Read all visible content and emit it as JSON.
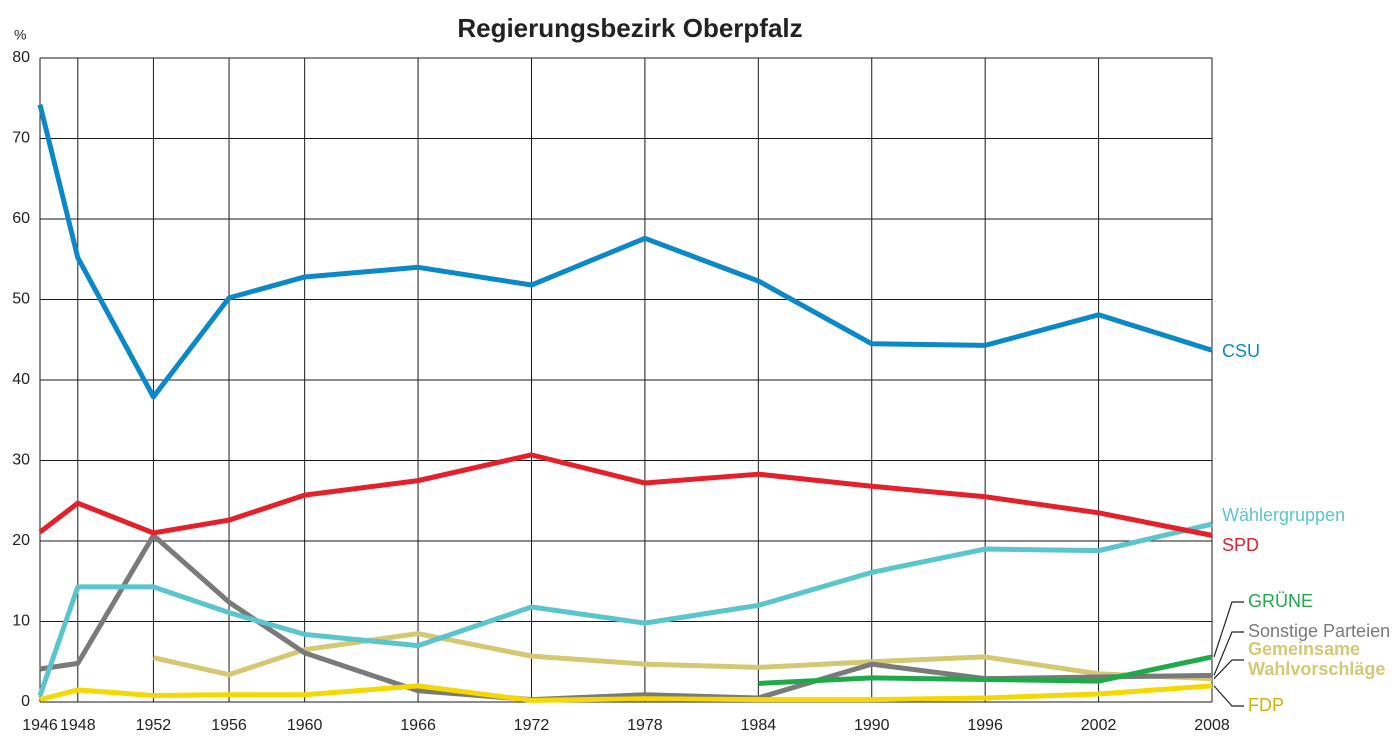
{
  "chart_data": {
    "type": "line",
    "title": "Regierungsbezirk Oberpfalz",
    "y_unit": "%",
    "x": [
      1946,
      1948,
      1952,
      1956,
      1960,
      1966,
      1972,
      1978,
      1984,
      1990,
      1996,
      2002,
      2008
    ],
    "xlim": [
      1946,
      2008
    ],
    "xticks": [
      1946,
      1948,
      1952,
      1956,
      1960,
      1966,
      1972,
      1978,
      1984,
      1990,
      1996,
      2002,
      2008
    ],
    "ylim": [
      0,
      80
    ],
    "yticks": [
      0,
      10,
      20,
      30,
      40,
      50,
      60,
      70,
      80
    ],
    "grid": true,
    "series": [
      {
        "name": "CSU",
        "color": "#0a88c8",
        "values": [
          74.2,
          55.2,
          37.9,
          50.2,
          52.8,
          54.0,
          51.8,
          57.6,
          52.3,
          44.5,
          44.3,
          48.1,
          43.7
        ]
      },
      {
        "name": "Wählergruppen",
        "color": "#5bc5cc",
        "values": [
          0.8,
          14.3,
          14.3,
          11.1,
          8.4,
          7.0,
          11.8,
          9.8,
          12.0,
          16.1,
          19.0,
          18.8,
          22.1
        ]
      },
      {
        "name": "SPD",
        "color": "#e5202a",
        "values": [
          21.1,
          24.7,
          21.0,
          22.6,
          25.7,
          27.5,
          30.7,
          27.2,
          28.3,
          26.8,
          25.5,
          23.5,
          20.7
        ]
      },
      {
        "name": "GRÜNE",
        "color": "#1faa4a",
        "values": [
          null,
          null,
          null,
          null,
          null,
          null,
          null,
          null,
          2.3,
          3.0,
          2.8,
          2.6,
          5.6
        ]
      },
      {
        "name": "Sonstige Parteien",
        "color": "#7a7a7a",
        "values": [
          4.1,
          4.8,
          20.7,
          12.4,
          6.1,
          1.4,
          0.3,
          0.9,
          0.5,
          4.7,
          2.9,
          3.1,
          3.3
        ]
      },
      {
        "name": "Gemeinsame Wahlvorschläge",
        "color": "#d4c872",
        "values": [
          null,
          null,
          5.5,
          3.4,
          6.5,
          8.5,
          5.7,
          4.7,
          4.3,
          5.0,
          5.6,
          3.5,
          2.9
        ]
      },
      {
        "name": "FDP",
        "color": "#f5d800",
        "values": [
          0.3,
          1.5,
          0.8,
          0.9,
          0.9,
          2.0,
          0.2,
          0.4,
          0.3,
          0.3,
          0.5,
          1.0,
          2.0
        ]
      }
    ]
  }
}
